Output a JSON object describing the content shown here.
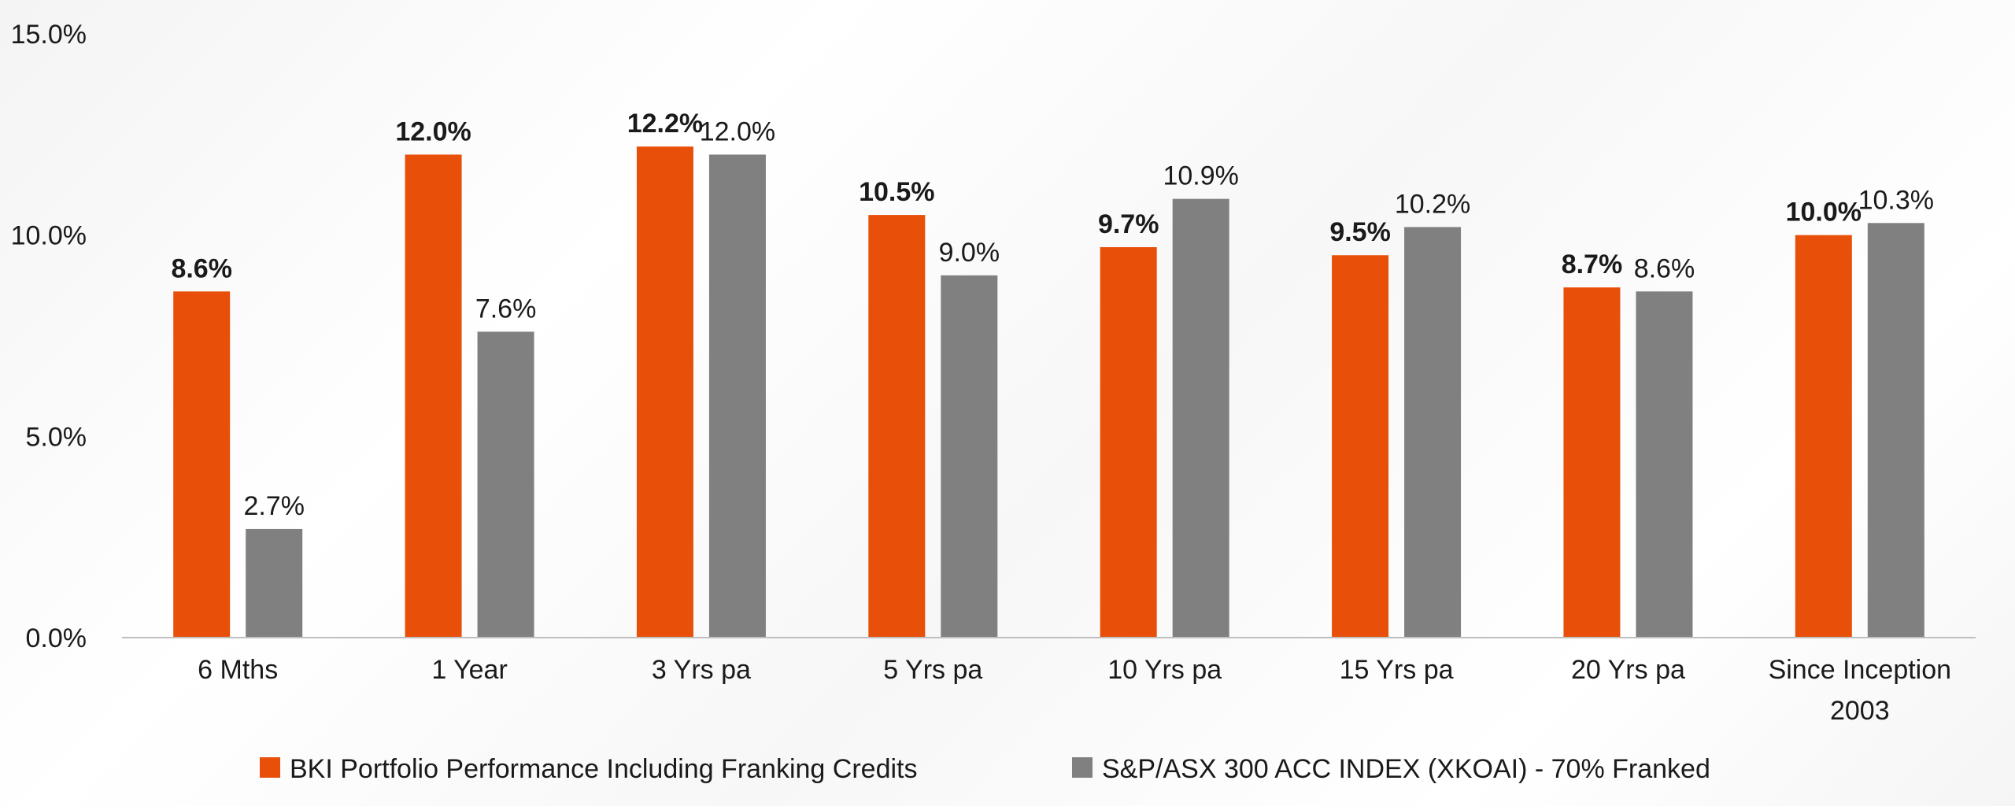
{
  "chart_data": {
    "type": "bar",
    "categories": [
      [
        "6 Mths"
      ],
      [
        "1 Year"
      ],
      [
        "3 Yrs pa"
      ],
      [
        "5 Yrs pa"
      ],
      [
        "10 Yrs pa"
      ],
      [
        "15 Yrs pa"
      ],
      [
        "20 Yrs pa"
      ],
      [
        "Since Inception",
        "2003"
      ]
    ],
    "series": [
      {
        "name": "BKI Portfolio Performance Including Franking Credits",
        "color": "#e8500a",
        "bold_labels": true,
        "values": [
          8.6,
          12.0,
          12.2,
          10.5,
          9.7,
          9.5,
          8.7,
          10.0
        ],
        "labels": [
          "8.6%",
          "12.0%",
          "12.2%",
          "10.5%",
          "9.7%",
          "9.5%",
          "8.7%",
          "10.0%"
        ]
      },
      {
        "name": "S&P/ASX 300 ACC INDEX (XKOAI) - 70% Franked",
        "color": "#808080",
        "bold_labels": false,
        "values": [
          2.7,
          7.6,
          12.0,
          9.0,
          10.9,
          10.2,
          8.6,
          10.3
        ],
        "labels": [
          "2.7%",
          "7.6%",
          "12.0%",
          "9.0%",
          "10.9%",
          "10.2%",
          "8.6%",
          "10.3%"
        ]
      }
    ],
    "ylim": [
      0,
      15
    ],
    "y_ticks": [
      0,
      5,
      10,
      15
    ],
    "y_tick_labels": [
      "0.0%",
      "5.0%",
      "10.0%",
      "15.0%"
    ],
    "grid": false,
    "legend_position": "bottom"
  }
}
